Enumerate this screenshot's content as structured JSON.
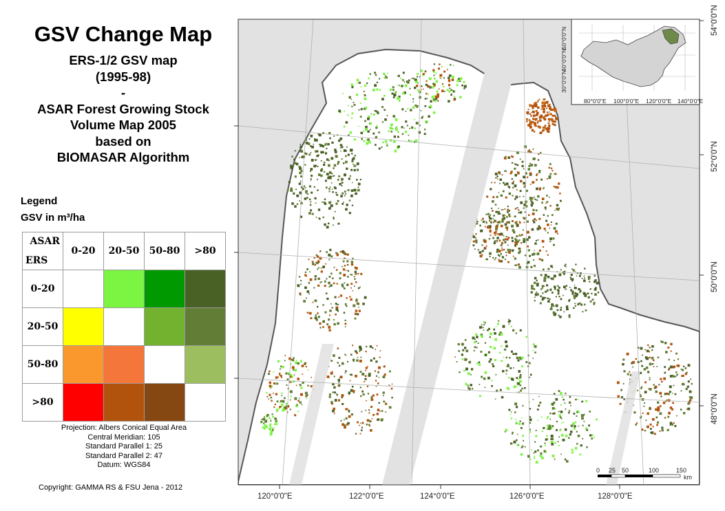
{
  "title": "GSV Change Map",
  "subtitle_lines": [
    "ERS-1/2 GSV map",
    "(1995-98)",
    "-",
    "ASAR Forest Growing Stock",
    "Volume Map 2005",
    "based on",
    "BIOMASAR Algorithm"
  ],
  "legend": {
    "heading": "Legend",
    "units": "GSV in m³/ha",
    "column_axis": "ASAR",
    "row_axis": "ERS",
    "columns": [
      "0-20",
      "20-50",
      "50-80",
      ">80"
    ],
    "rows": [
      {
        "label": "0-20",
        "colors": [
          "#ffffff",
          "#7cf442",
          "#009a00",
          "#4a6126"
        ]
      },
      {
        "label": "20-50",
        "colors": [
          "#ffff00",
          "#ffffff",
          "#73b22f",
          "#627d35"
        ]
      },
      {
        "label": "50-80",
        "colors": [
          "#fb982d",
          "#f5763a",
          "#ffffff",
          "#9cbe5e"
        ]
      },
      {
        "label": ">80",
        "colors": [
          "#ff0000",
          "#b1530d",
          "#864812",
          "#ffffff"
        ]
      }
    ]
  },
  "projection_info": [
    "Projection: Albers Conical Equal Area",
    "Central Meridian: 105",
    "Standard Parallel 1: 25",
    "Standard Parallel 2: 47",
    "Datum: WGS84"
  ],
  "copyright": "Copyright: GAMMA RS & FSU Jena - 2012",
  "map": {
    "longitude_labels": [
      "120°0'0\"E",
      "122°0'0\"E",
      "124°0'0\"E",
      "126°0'0\"E",
      "128°0'0\"E"
    ],
    "latitude_labels": [
      "54°0'0\"N",
      "52°0'0\"N",
      "50°0'0\"N",
      "48°0'0\"N"
    ],
    "inset": {
      "longitude_labels": [
        "80°0'0\"E",
        "100°0'0\"E",
        "120°0'0\"E",
        "140°0'0\"E"
      ],
      "latitude_labels": [
        "50°0'0\"N",
        "40°0'0\"N",
        "30°0'0\"N"
      ]
    },
    "scale_bar": {
      "ticks": [
        "0",
        "25",
        "50",
        "100",
        "150"
      ],
      "unit": "km"
    },
    "colors": {
      "no_data": "#e2e2e2",
      "forest_dark": "#4a6126",
      "forest_mid": "#627d35",
      "loss": "#b1530d",
      "gain": "#7cf442",
      "border": "#555555"
    }
  }
}
